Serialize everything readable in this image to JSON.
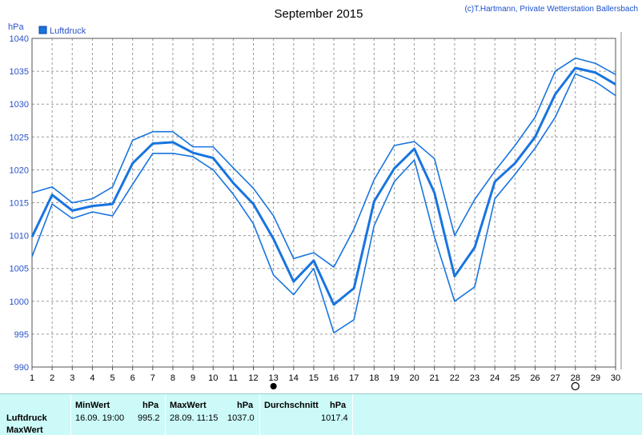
{
  "title": "September 2015",
  "copyright": "(c)T.Hartmann, Private Wetterstation Ballersbach",
  "unit_label": "hPa",
  "legend": {
    "label": "Luftdruck",
    "color": "#1874e0"
  },
  "chart_data": {
    "type": "line",
    "title": "September 2015",
    "ylabel": "hPa",
    "xlabel": "",
    "xlim": [
      1,
      30
    ],
    "ylim": [
      990,
      1040
    ],
    "yticks": [
      990,
      995,
      1000,
      1005,
      1010,
      1015,
      1020,
      1025,
      1030,
      1035,
      1040
    ],
    "grid": true,
    "legend_position": "top-left",
    "x": [
      1,
      2,
      3,
      4,
      5,
      6,
      7,
      8,
      9,
      10,
      11,
      12,
      13,
      14,
      15,
      16,
      17,
      18,
      19,
      20,
      21,
      22,
      23,
      24,
      25,
      26,
      27,
      28,
      29,
      30
    ],
    "series": [
      {
        "name": "Luftdruck",
        "values": [
          1009.8,
          1016.2,
          1013.8,
          1014.5,
          1014.8,
          1021.0,
          1024.0,
          1024.2,
          1022.6,
          1021.8,
          1018.0,
          1014.8,
          1009.5,
          1003.0,
          1006.2,
          999.5,
          1002.0,
          1015.2,
          1020.2,
          1023.2,
          1016.5,
          1003.8,
          1008.2,
          1018.2,
          1021.0,
          1025.0,
          1031.5,
          1035.5,
          1034.8,
          1033.0
        ]
      },
      {
        "values": [
          1016.5,
          1017.4,
          1015.0,
          1015.6,
          1017.4,
          1024.5,
          1025.8,
          1025.8,
          1023.5,
          1023.5,
          1020.3,
          1017.2,
          1013.0,
          1006.5,
          1007.4,
          1005.2,
          1011.0,
          1018.5,
          1023.7,
          1024.3,
          1021.7,
          1010.0,
          1015.5,
          1019.8,
          1023.7,
          1028.0,
          1035.0,
          1037.0,
          1036.2,
          1034.5
        ]
      },
      {
        "values": [
          1006.8,
          1014.8,
          1012.6,
          1013.6,
          1013.0,
          1017.8,
          1022.5,
          1022.5,
          1022.0,
          1020.0,
          1016.3,
          1011.8,
          1004.0,
          1001.0,
          1005.0,
          995.2,
          997.2,
          1011.5,
          1018.2,
          1021.5,
          1009.8,
          1000.0,
          1002.2,
          1015.6,
          1019.3,
          1023.3,
          1028.0,
          1034.6,
          1033.4,
          1031.3
        ]
      }
    ],
    "markers": [
      {
        "x": 13,
        "symbol": "filled-circle"
      },
      {
        "x": 28,
        "symbol": "open-circle"
      }
    ]
  },
  "stats": {
    "row_label": "Luftdruck",
    "row2_label": "MaxWert",
    "min_header": "MinWert",
    "min_unit": "hPa",
    "min_time": "16.09. 19:00",
    "min_value": "995.2",
    "max_header": "MaxWert",
    "max_unit": "hPa",
    "max_time": "28.09. 11:15",
    "max_value": "1037.0",
    "avg_header": "Durchschnitt",
    "avg_unit": "hPa",
    "avg_value": "1017.4"
  }
}
